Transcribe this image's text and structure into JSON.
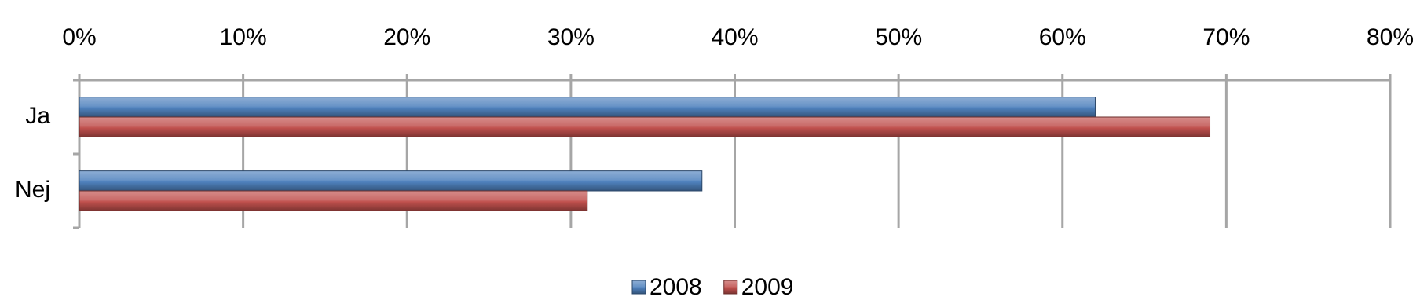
{
  "chart_data": {
    "type": "hbar",
    "categories": [
      "Ja",
      "Nej"
    ],
    "series": [
      {
        "name": "2008",
        "color": "#4f81bd",
        "values": [
          62,
          38
        ]
      },
      {
        "name": "2009",
        "color": "#c0504d",
        "values": [
          69,
          31
        ]
      }
    ],
    "xlim": [
      0,
      80
    ],
    "xticks": [
      {
        "value": 0,
        "label": "0%"
      },
      {
        "value": 10,
        "label": "10%"
      },
      {
        "value": 20,
        "label": "20%"
      },
      {
        "value": 30,
        "label": "30%"
      },
      {
        "value": 40,
        "label": "40%"
      },
      {
        "value": 50,
        "label": "50%"
      },
      {
        "value": 60,
        "label": "60%"
      },
      {
        "value": 70,
        "label": "70%"
      },
      {
        "value": 80,
        "label": "80%"
      }
    ],
    "grid": true,
    "legend": "bottom"
  }
}
